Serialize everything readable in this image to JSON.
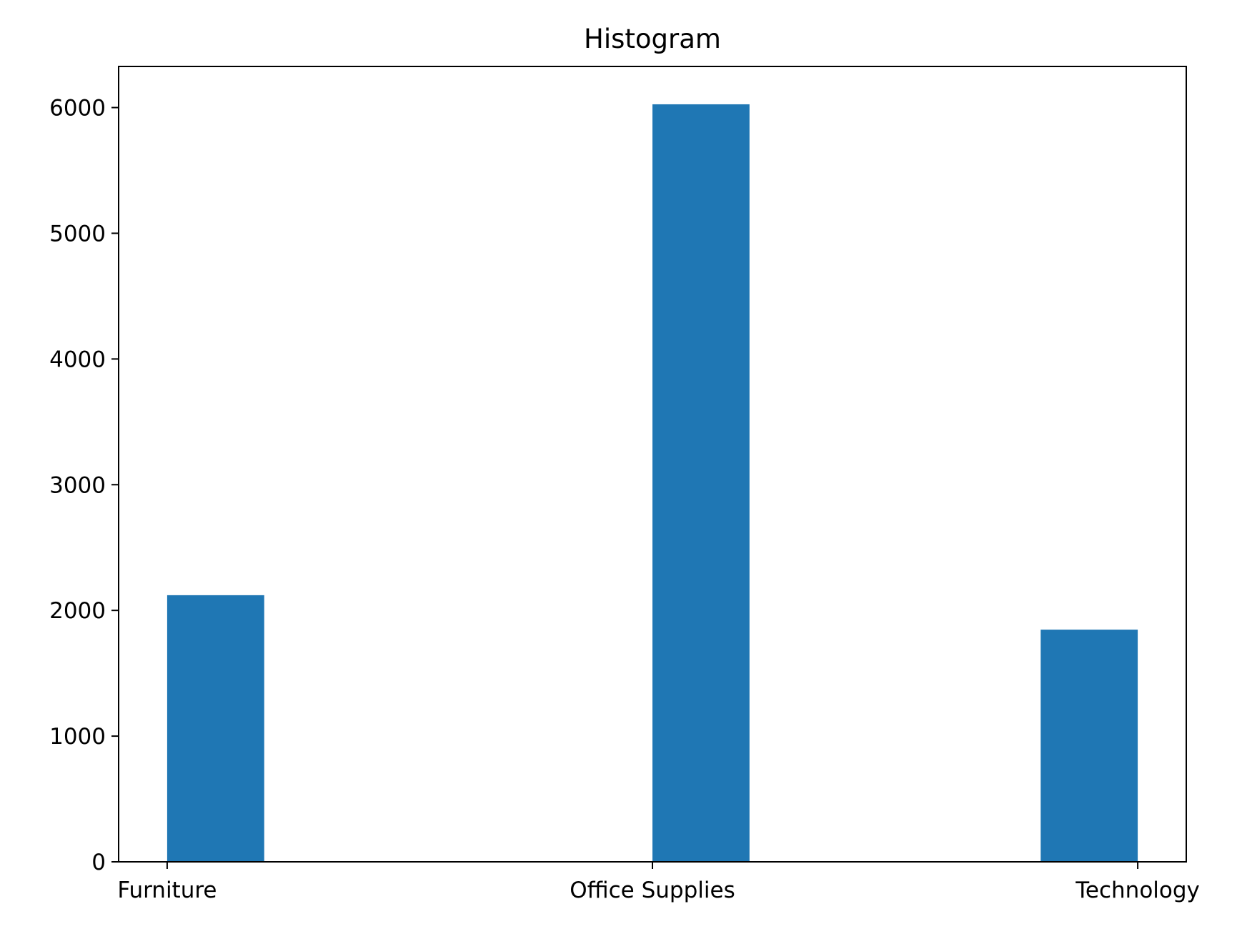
{
  "chart_data": {
    "type": "bar",
    "title": "Histogram",
    "xlabel": "",
    "ylabel": "",
    "categories": [
      "Furniture",
      "Office Supplies",
      "Technology"
    ],
    "values": [
      2121,
      6026,
      1847
    ],
    "ylim": [
      0,
      6327
    ],
    "yticks": [
      "0",
      "1000",
      "2000",
      "3000",
      "4000",
      "5000",
      "6000"
    ],
    "grid": false,
    "legend": "none",
    "bar_color": "#1f77b4",
    "axis_color": "#000000",
    "background": "#ffffff"
  }
}
